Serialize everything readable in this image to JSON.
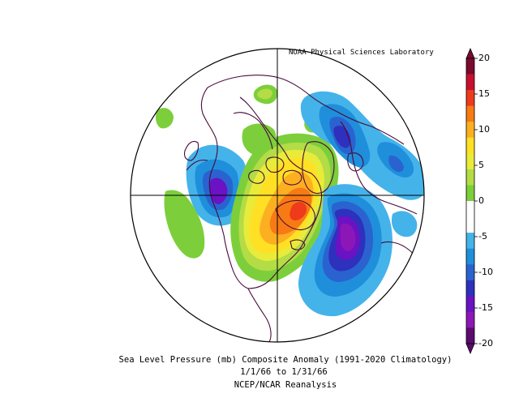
{
  "map": {
    "credit": "NOAA Physical Sciences Laboratory",
    "caption_line1": "Sea Level Pressure (mb) Composite Anomaly (1991-2020 Climatology)",
    "caption_line2": "1/1/66  to 1/31/66",
    "caption_line3": "NCEP/NCAR Reanalysis",
    "projection": "north-polar-stereographic",
    "variable": "Sea Level Pressure (mb) anomaly"
  },
  "colorbar": {
    "ticks": [
      "20",
      "15",
      "10",
      "5",
      "0",
      "-5",
      "-10",
      "-15",
      "-20"
    ],
    "colors": [
      "#7a0a2f",
      "#c8102e",
      "#ee3b1c",
      "#f87a14",
      "#fcb021",
      "#ffe024",
      "#e9eb3a",
      "#b3dc46",
      "#7ccf3a",
      "#ffffff",
      "#ffffff",
      "#44b3ea",
      "#1f8fdc",
      "#2a63cf",
      "#2e31bd",
      "#6a12c4",
      "#8d17b6",
      "#5c0a6e"
    ]
  },
  "anomalies": [
    {
      "label": "positive center over Canada/Greenland",
      "sign": "positive",
      "peak": 15
    },
    {
      "label": "negative center North Atlantic",
      "sign": "negative",
      "peak": -15
    },
    {
      "label": "negative center Europe",
      "sign": "negative",
      "peak": -10
    },
    {
      "label": "negative center North Pacific",
      "sign": "negative",
      "peak": -10
    }
  ]
}
